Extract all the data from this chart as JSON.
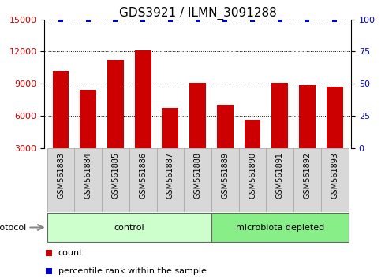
{
  "title": "GDS3921 / ILMN_3091288",
  "samples": [
    "GSM561883",
    "GSM561884",
    "GSM561885",
    "GSM561886",
    "GSM561887",
    "GSM561888",
    "GSM561889",
    "GSM561890",
    "GSM561891",
    "GSM561892",
    "GSM561893"
  ],
  "counts": [
    10200,
    8400,
    11200,
    12100,
    6700,
    9100,
    7000,
    5600,
    9100,
    8900,
    8700
  ],
  "percentile_ranks": [
    100,
    100,
    100,
    100,
    100,
    100,
    100,
    100,
    100,
    100,
    100
  ],
  "bar_color": "#cc0000",
  "dot_color": "#0000cc",
  "ylim_left": [
    3000,
    15000
  ],
  "ylim_right": [
    0,
    100
  ],
  "yticks_left": [
    3000,
    6000,
    9000,
    12000,
    15000
  ],
  "yticks_right": [
    0,
    25,
    50,
    75,
    100
  ],
  "control_color": "#ccffcc",
  "microbiota_color": "#88ee88",
  "label_box_color": "#d8d8d8",
  "protocol_label": "protocol",
  "legend_count_label": "count",
  "legend_percentile_label": "percentile rank within the sample",
  "background_color": "#ffffff",
  "plot_bg_color": "#ffffff",
  "tick_label_color_left": "#cc0000",
  "tick_label_color_right": "#0000cc",
  "title_fontsize": 11,
  "tick_fontsize": 8,
  "label_fontsize": 7,
  "bar_width": 0.6
}
